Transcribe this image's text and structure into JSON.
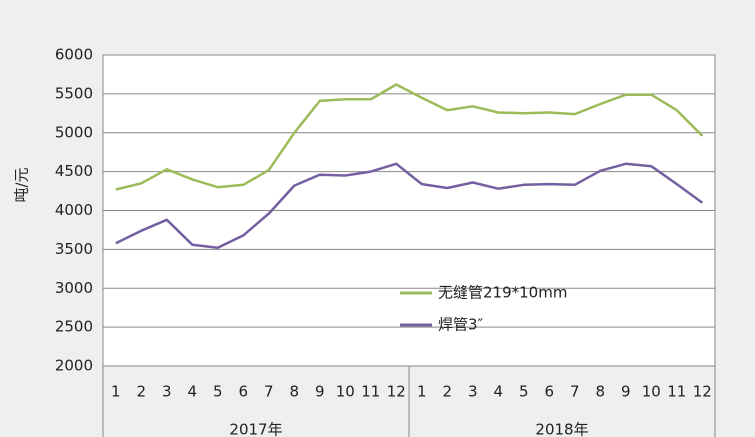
{
  "chart_data": {
    "type": "line",
    "y_label": "吨/元",
    "categories": [
      "1",
      "2",
      "3",
      "4",
      "5",
      "6",
      "7",
      "8",
      "9",
      "10",
      "11",
      "12",
      "1",
      "2",
      "3",
      "4",
      "5",
      "6",
      "7",
      "8",
      "9",
      "10",
      "11",
      "12"
    ],
    "groups": [
      "2017年",
      "2018年"
    ],
    "series": [
      {
        "name": "无缝管219*10mm",
        "color": "#9bbb59",
        "values": [
          4270,
          4350,
          4530,
          4400,
          4300,
          4330,
          4520,
          5000,
          5410,
          5430,
          5430,
          5620,
          5450,
          5290,
          5340,
          5260,
          5250,
          5260,
          5240,
          5370,
          5490,
          5490,
          5290,
          4960
        ]
      },
      {
        "name": "焊管3″",
        "color": "#7460a0",
        "values": [
          3580,
          3740,
          3880,
          3560,
          3520,
          3680,
          3960,
          4320,
          4460,
          4450,
          4500,
          4600,
          4340,
          4290,
          4360,
          4280,
          4330,
          4340,
          4330,
          4510,
          4600,
          4570,
          4340,
          4100
        ]
      }
    ],
    "ylim": [
      2000,
      6000
    ],
    "yticks": [
      2000,
      2500,
      3000,
      3500,
      4000,
      4500,
      5000,
      5500,
      6000
    ],
    "grid": true
  }
}
